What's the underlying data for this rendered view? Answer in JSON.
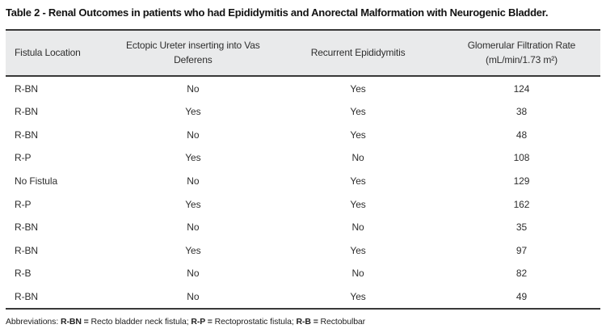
{
  "title": "Table 2 - Renal Outcomes in patients who had Epididymitis and Anorectal Malformation with Neurogenic Bladder.",
  "table": {
    "columns": [
      "Fistula Location",
      "Ectopic Ureter inserting into Vas Deferens",
      "Recurrent Epididymitis",
      "Glomerular Filtration Rate (mL/min/1.73 m²)"
    ],
    "rows": [
      [
        "R-BN",
        "No",
        "Yes",
        124
      ],
      [
        "R-BN",
        "Yes",
        "Yes",
        38
      ],
      [
        "R-BN",
        "No",
        "Yes",
        48
      ],
      [
        "R-P",
        "Yes",
        "No",
        108
      ],
      [
        "No Fistula",
        "No",
        "Yes",
        129
      ],
      [
        "R-P",
        "Yes",
        "Yes",
        162
      ],
      [
        "R-BN",
        "No",
        "No",
        35
      ],
      [
        "R-BN",
        "Yes",
        "Yes",
        97
      ],
      [
        "R-B",
        "No",
        "No",
        82
      ],
      [
        "R-BN",
        "No",
        "Yes",
        49
      ]
    ]
  },
  "footnote": {
    "prefix": "Abbreviations: ",
    "abbreviations": [
      {
        "term": "R-BN = ",
        "definition": "Recto bladder neck fistula; "
      },
      {
        "term": "R-P = ",
        "definition": "Rectoprostatic fistula; "
      },
      {
        "term": "R-B = ",
        "definition": "Rectobulbar"
      }
    ]
  },
  "colors": {
    "header_background": "#e9eaeb",
    "rule": "#383838",
    "text": "#2e2e2e",
    "page_background": "#ffffff"
  }
}
